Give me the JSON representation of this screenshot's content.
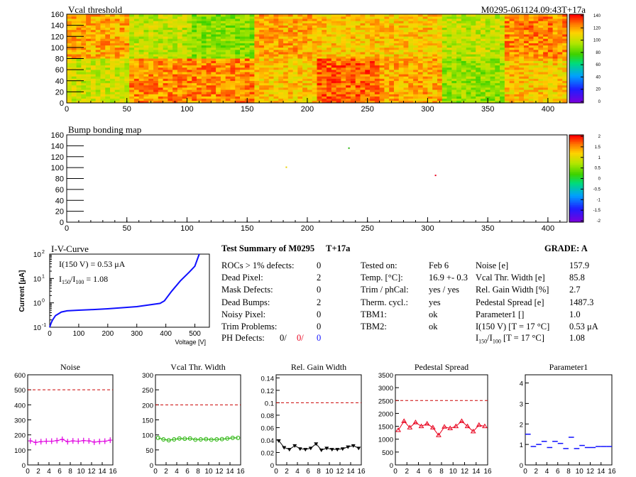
{
  "colors": {
    "red": "#e8001c",
    "green": "#1fb100",
    "blue": "#1010ff",
    "magenta": "#e000e0",
    "black": "#000000",
    "darkred": "#cc0000"
  },
  "vcal_map": {
    "title": "Vcal threshold",
    "id": "M0295-061124.09:43T+17a",
    "x_ticks": [
      "0",
      "50",
      "100",
      "150",
      "200",
      "250",
      "300",
      "350",
      "400"
    ],
    "y_ticks": [
      "0",
      "20",
      "40",
      "60",
      "80",
      "100",
      "120",
      "140",
      "160"
    ],
    "z_ticks": [
      "140",
      "120",
      "100",
      "80",
      "60",
      "40",
      "20",
      "0"
    ],
    "xlim": [
      0,
      416
    ],
    "ylim": [
      0,
      160
    ],
    "zlim": [
      0,
      140
    ],
    "top_row_means": [
      118,
      98,
      88,
      118,
      113,
      113,
      98,
      123
    ],
    "bottom_row_means": [
      100,
      123,
      123,
      113,
      128,
      118,
      90,
      113
    ]
  },
  "bump_map": {
    "title": "Bump bonding map",
    "x_ticks": [
      "0",
      "50",
      "100",
      "150",
      "200",
      "250",
      "300",
      "350",
      "400"
    ],
    "y_ticks": [
      "0",
      "20",
      "40",
      "60",
      "80",
      "100",
      "120",
      "140",
      "160"
    ],
    "z_ticks": [
      "2",
      "1.5",
      "1",
      "0.5",
      "0",
      "-0.5",
      "-1",
      "-1.5",
      "-2"
    ],
    "xlim": [
      0,
      416
    ],
    "ylim": [
      0,
      160
    ],
    "zlim": [
      -2,
      2
    ],
    "points": [
      {
        "x": 234,
        "y": 137
      },
      {
        "x": 182,
        "y": 102
      },
      {
        "x": 306,
        "y": 87
      }
    ]
  },
  "iv": {
    "title": "I-V-Curve",
    "ylabel": "Current [μA]",
    "xlabel": "Voltage [V]",
    "note1": "I(150 V) = 0.53 μA",
    "note2_a": "I",
    "note2_sub": "150",
    "note2_b": "/I",
    "note2_sub2": "100",
    "note2_val": "=  1.08",
    "x_ticks": [
      "0",
      "100",
      "200",
      "300",
      "400",
      "500"
    ],
    "y_ticks": [
      "10",
      "10",
      "10",
      "10"
    ],
    "y_exps": [
      "2",
      "1",
      "0",
      "-1"
    ],
    "xlim": [
      0,
      550
    ],
    "ylim_log": [
      -1,
      2
    ]
  },
  "summary": {
    "title": "Test Summary of M0295",
    "tag": "T+17a",
    "grade": "GRADE:  A",
    "left": [
      {
        "label": "ROCs > 1% defects:",
        "value": "0"
      },
      {
        "label": "Dead Pixel:",
        "value": "2"
      },
      {
        "label": "Mask Defects:",
        "value": "0"
      },
      {
        "label": "Dead Bumps:",
        "value": "2"
      },
      {
        "label": "Noisy Pixel:",
        "value": "0"
      },
      {
        "label": "Trim Problems:",
        "value": "0"
      }
    ],
    "ph_label": "PH Defects:",
    "ph_values": [
      "0/",
      "0/",
      "0"
    ],
    "mid": [
      {
        "label": "Tested on:",
        "value": "Feb 6"
      },
      {
        "label": "Temp. [°C]:",
        "value": "16.9 +- 0.3"
      },
      {
        "label": "Trim / phCal:",
        "value": "yes / yes"
      },
      {
        "label": "Therm. cycl.:",
        "value": "yes"
      },
      {
        "label": "TBM1:",
        "value": "ok"
      },
      {
        "label": "TBM2:",
        "value": "ok"
      }
    ],
    "right": [
      {
        "label": "Noise [e]",
        "value": "157.9"
      },
      {
        "label": "Vcal Thr. Width [e]",
        "value": "85.8"
      },
      {
        "label": "Rel. Gain Width [%]",
        "value": "2.7"
      },
      {
        "label": "Pedestal Spread [e]",
        "value": "1487.3"
      },
      {
        "label": "Parameter1 []",
        "value": "1.0"
      },
      {
        "label": "I(150 V) [T = 17 °C]",
        "value": "0.53 μA"
      }
    ],
    "ratio_a": "I",
    "ratio_sub": "150",
    "ratio_b": "/I",
    "ratio_sub2": "100",
    "ratio_c": "  [T = 17 °C]",
    "ratio_value": "1.08"
  },
  "chart_data": [
    {
      "type": "heatmap",
      "title": "Vcal threshold",
      "x_range": [
        0,
        416
      ],
      "y_range": [
        0,
        160
      ],
      "z_range": [
        0,
        140
      ],
      "layout": "2 rows x 8 ROCs, blocks 52 x 80",
      "top_row_means": [
        118,
        98,
        88,
        118,
        113,
        113,
        98,
        123
      ],
      "bottom_row_means": [
        100,
        123,
        123,
        113,
        128,
        118,
        90,
        113
      ]
    },
    {
      "type": "scatter",
      "title": "Bump bonding map",
      "x_range": [
        0,
        416
      ],
      "y_range": [
        0,
        160
      ],
      "z_range": [
        -2,
        2
      ],
      "points": [
        {
          "x": 234,
          "y": 137
        },
        {
          "x": 182,
          "y": 102
        },
        {
          "x": 306,
          "y": 87
        }
      ]
    },
    {
      "type": "line",
      "title": "I-V-Curve",
      "xlabel": "Voltage [V]",
      "ylabel": "Current [μA]",
      "y_scale": "log",
      "x": [
        0,
        5,
        10,
        20,
        40,
        60,
        100,
        150,
        200,
        300,
        380,
        395,
        420,
        450,
        480,
        500,
        515
      ],
      "y": [
        0.1,
        0.15,
        0.2,
        0.3,
        0.42,
        0.47,
        0.5,
        0.53,
        0.57,
        0.7,
        0.95,
        1.2,
        3.0,
        8.0,
        18,
        32,
        100
      ]
    },
    {
      "type": "scatter",
      "title": "Noise",
      "x": [
        0,
        1,
        2,
        3,
        4,
        5,
        6,
        7,
        8,
        9,
        10,
        11,
        12,
        13,
        14,
        15
      ],
      "y": [
        160,
        150,
        155,
        158,
        158,
        162,
        170,
        155,
        160,
        158,
        162,
        160,
        152,
        156,
        158,
        165
      ],
      "threshold": 500,
      "ylim": [
        0,
        600
      ],
      "y_ticks": [
        "0",
        "100",
        "200",
        "300",
        "400",
        "500",
        "600"
      ]
    },
    {
      "type": "scatter",
      "title": "Vcal Thr. Width",
      "x": [
        0,
        1,
        2,
        3,
        4,
        5,
        6,
        7,
        8,
        9,
        10,
        11,
        12,
        13,
        14,
        15
      ],
      "y": [
        90,
        85,
        82,
        85,
        88,
        87,
        88,
        84,
        85,
        86,
        84,
        85,
        86,
        88,
        90,
        90
      ],
      "threshold": 200,
      "ylim": [
        0,
        300
      ],
      "y_ticks": [
        "0",
        "50",
        "100",
        "150",
        "200",
        "250",
        "300"
      ]
    },
    {
      "type": "scatter",
      "title": "Rel. Gain Width",
      "x": [
        0,
        1,
        2,
        3,
        4,
        5,
        6,
        7,
        8,
        9,
        10,
        11,
        12,
        13,
        14,
        15
      ],
      "y": [
        0.039,
        0.028,
        0.025,
        0.031,
        0.026,
        0.025,
        0.027,
        0.034,
        0.024,
        0.027,
        0.025,
        0.025,
        0.026,
        0.029,
        0.031,
        0.027
      ],
      "threshold": 0.1,
      "ylim": [
        0,
        0.145
      ],
      "y_ticks": [
        "0",
        "0.02",
        "0.04",
        "0.06",
        "0.08",
        "0.1",
        "0.12",
        "0.14"
      ]
    },
    {
      "type": "scatter",
      "title": "Pedestal Spread",
      "x": [
        0,
        1,
        2,
        3,
        4,
        5,
        6,
        7,
        8,
        9,
        10,
        11,
        12,
        13,
        14,
        15
      ],
      "y": [
        1350,
        1700,
        1450,
        1650,
        1500,
        1600,
        1450,
        1150,
        1480,
        1420,
        1500,
        1700,
        1500,
        1300,
        1550,
        1500
      ],
      "threshold": 2500,
      "ylim": [
        0,
        3500
      ],
      "y_ticks": [
        "0",
        "500",
        "1000",
        "1500",
        "2000",
        "2500",
        "3000",
        "3500"
      ]
    },
    {
      "type": "scatter",
      "title": "Parameter1",
      "x": [
        0,
        1,
        2,
        3,
        4,
        5,
        6,
        7,
        8,
        9,
        10,
        11,
        12,
        13,
        14,
        15
      ],
      "y": [
        1.5,
        0.9,
        1.0,
        1.15,
        0.85,
        1.15,
        1.05,
        0.8,
        1.35,
        0.8,
        0.95,
        0.85,
        0.85,
        0.9,
        0.9,
        0.9
      ],
      "ylim": [
        0,
        4.4
      ],
      "y_ticks": [
        "0",
        "1",
        "2",
        "3",
        "4"
      ]
    }
  ],
  "x_ticks_small": [
    "0",
    "2",
    "4",
    "6",
    "8",
    "10",
    "12",
    "14",
    "16"
  ]
}
